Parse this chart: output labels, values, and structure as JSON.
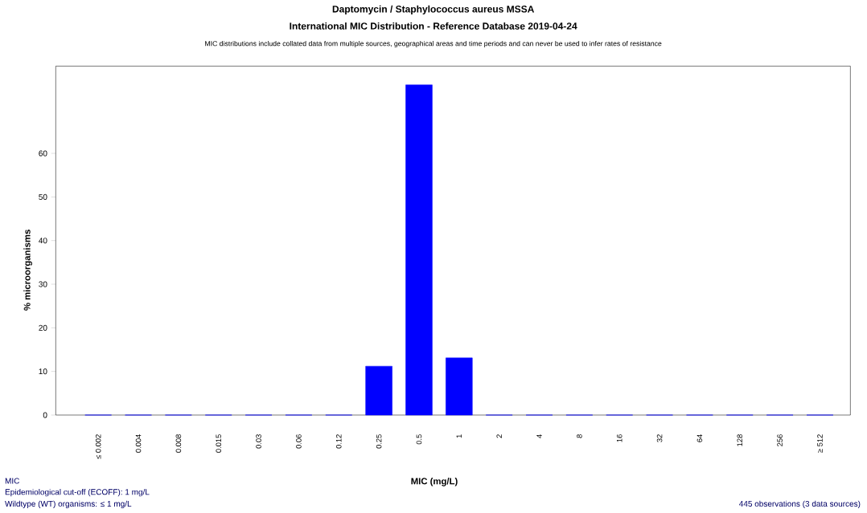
{
  "chart_data": {
    "type": "bar",
    "title": "Daptomycin / Staphylococcus aureus MSSA",
    "subtitle": "International MIC Distribution - Reference Database 2019-04-24",
    "xlabel": "MIC (mg/L)",
    "ylabel": "% microorganisms",
    "categories": [
      "≤ 0.002",
      "0.004",
      "0.008",
      "0.015",
      "0.03",
      "0.06",
      "0.12",
      "0.25",
      "0.5",
      "1",
      "2",
      "4",
      "8",
      "16",
      "32",
      "64",
      "128",
      "256",
      "≥ 512"
    ],
    "values": [
      0,
      0,
      0,
      0,
      0,
      0,
      0,
      11.2,
      75.7,
      13.1,
      0,
      0,
      0,
      0,
      0,
      0,
      0,
      0,
      0
    ],
    "color": "#0000ff",
    "ylim": [
      0,
      80
    ],
    "yticks": [
      0,
      10,
      20,
      30,
      40,
      50,
      60
    ],
    "annotations": [
      "MIC distributions include collated data from multiple sources, geographical areas and time periods and can never be used to infer rates of resistance",
      "MIC",
      "Epidemiological cut-off (ECOFF): 1 mg/L",
      "Wildtype (WT) organisms: ≤ 1 mg/L",
      "445 observations (3 data sources)"
    ]
  }
}
